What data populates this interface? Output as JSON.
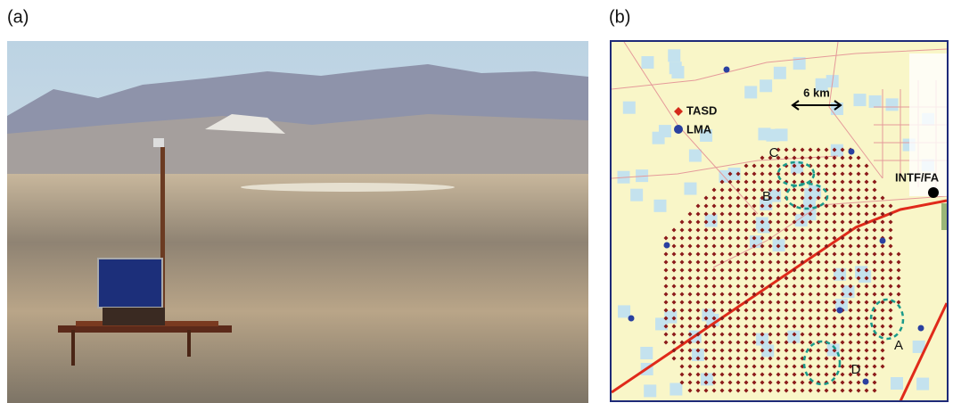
{
  "panels": [
    {
      "label": "(a)"
    },
    {
      "label": "(b)",
      "legend": [
        {
          "label": "TASD"
        },
        {
          "label": "LMA"
        }
      ],
      "scale_label": "6 km",
      "site_label": "INTF/FA",
      "regions": [
        "A",
        "B",
        "C",
        "D"
      ]
    }
  ]
}
